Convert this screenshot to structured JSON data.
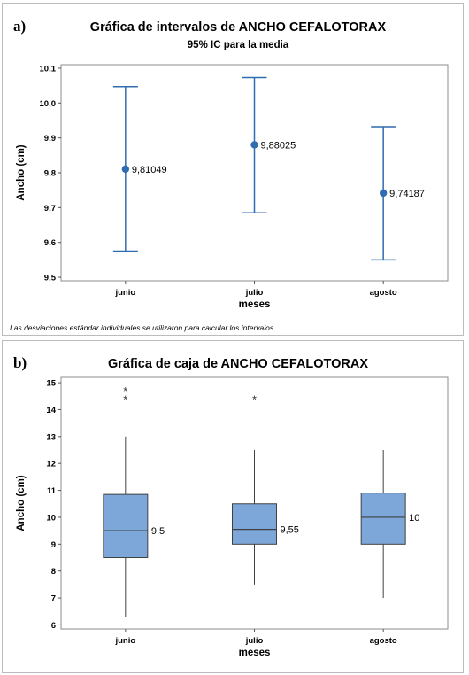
{
  "panels": {
    "a": {
      "letter": "a)",
      "title": "Gráfica de intervalos de ANCHO CEFALOTORAX",
      "subtitle": "95% IC para la media",
      "note": "Las desviaciones estándar individuales se utilizaron para calcular los intervalos."
    },
    "b": {
      "letter": "b)",
      "title": "Gráfica de caja de ANCHO CEFALOTORAX"
    }
  },
  "chart_data": [
    {
      "type": "interval",
      "title": "Gráfica de intervalos de ANCHO CEFALOTORAX",
      "subtitle": "95% IC para la media",
      "xlabel": "meses",
      "ylabel": "Ancho (cm)",
      "categories": [
        "junio",
        "julio",
        "agosto"
      ],
      "mean": [
        9.81049,
        9.88025,
        9.74187
      ],
      "mean_labels": [
        "9,81049",
        "9,88025",
        "9,74187"
      ],
      "lower": [
        9.575,
        9.685,
        9.55
      ],
      "upper": [
        10.047,
        10.073,
        9.932
      ],
      "ylim": [
        9.49,
        10.11
      ],
      "yticks": [
        9.5,
        9.6,
        9.7,
        9.8,
        9.9,
        10.0,
        10.1
      ],
      "ytick_labels": [
        "9,5",
        "9,6",
        "9,7",
        "9,8",
        "9,9",
        "10,0",
        "10,1"
      ],
      "color": "#2f6cb0",
      "grid": false
    },
    {
      "type": "box",
      "title": "Gráfica de caja de ANCHO CEFALOTORAX",
      "xlabel": "meses",
      "ylabel": "Ancho (cm)",
      "categories": [
        "junio",
        "julio",
        "agosto"
      ],
      "whisker_low": [
        6.3,
        7.5,
        7.0
      ],
      "q1": [
        8.5,
        9.0,
        9.0
      ],
      "median": [
        9.5,
        9.55,
        10.0
      ],
      "q3": [
        10.85,
        10.5,
        10.9
      ],
      "whisker_high": [
        13.0,
        12.5,
        12.5
      ],
      "outliers": [
        [
          14.4,
          14.7
        ],
        [
          14.4
        ],
        []
      ],
      "median_labels": [
        "9,5",
        "9,55",
        "10"
      ],
      "ylim": [
        5.85,
        15.2
      ],
      "yticks": [
        6,
        7,
        8,
        9,
        10,
        11,
        12,
        13,
        14,
        15
      ],
      "box_color": "#7da7d9",
      "grid": false
    }
  ]
}
